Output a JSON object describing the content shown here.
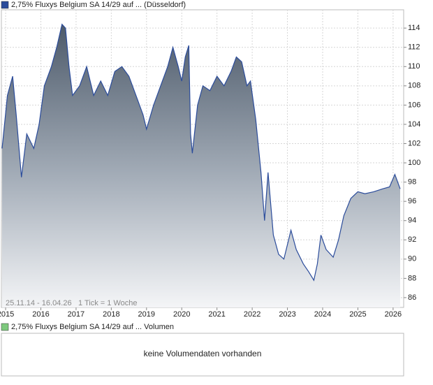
{
  "chart_data": {
    "type": "area",
    "x": [
      2014.9,
      2015.05,
      2015.2,
      2015.3,
      2015.45,
      2015.6,
      2015.8,
      2015.95,
      2016.1,
      2016.3,
      2016.45,
      2016.6,
      2016.7,
      2016.8,
      2016.9,
      2017.1,
      2017.3,
      2017.5,
      2017.7,
      2017.9,
      2018.1,
      2018.3,
      2018.5,
      2018.7,
      2018.9,
      2019.0,
      2019.2,
      2019.4,
      2019.6,
      2019.75,
      2019.9,
      2020.0,
      2020.1,
      2020.2,
      2020.25,
      2020.3,
      2020.45,
      2020.6,
      2020.8,
      2021.0,
      2021.2,
      2021.4,
      2021.55,
      2021.7,
      2021.85,
      2021.95,
      2022.1,
      2022.25,
      2022.35,
      2022.45,
      2022.6,
      2022.75,
      2022.9,
      2023.1,
      2023.25,
      2023.45,
      2023.6,
      2023.75,
      2023.85,
      2023.95,
      2024.1,
      2024.3,
      2024.45,
      2024.6,
      2024.8,
      2025.0,
      2025.2,
      2025.45,
      2025.7,
      2025.9,
      2026.05,
      2026.2
    ],
    "series": [
      {
        "name": "2,75% Fluxys Belgium SA 14/29 auf ... (Düsseldorf)",
        "color": "#2b4c9b",
        "values": [
          101.5,
          107,
          109,
          105,
          98.5,
          103,
          101.5,
          104,
          108,
          110,
          112,
          114.4,
          114,
          110,
          107,
          108,
          110,
          107,
          108.5,
          107,
          109.5,
          110,
          109,
          107,
          105,
          103.5,
          106,
          108,
          110,
          112,
          110,
          108.5,
          111,
          112.2,
          103,
          101,
          106,
          108,
          107.5,
          109,
          108,
          109.5,
          111,
          110.5,
          108,
          108.5,
          104.5,
          99,
          94,
          99,
          92.5,
          90.5,
          90,
          93,
          91,
          89.5,
          88.7,
          87.8,
          89.5,
          92.5,
          91,
          90.2,
          92,
          94.5,
          96.3,
          97,
          96.8,
          97,
          97.3,
          97.5,
          98.8,
          97.3
        ]
      }
    ],
    "xlim": [
      2014.88,
      2026.3
    ],
    "xticks": [
      2015,
      2016,
      2017,
      2018,
      2019,
      2020,
      2021,
      2022,
      2023,
      2024,
      2025,
      2026
    ],
    "ylim": [
      84.98,
      115.9
    ],
    "yticks": [
      86,
      88,
      90,
      92,
      94,
      96,
      98,
      100,
      102,
      104,
      106,
      108,
      110,
      112,
      114
    ],
    "grid": true,
    "annotations": [
      "25.11.14 - 16.04.26",
      "1 Tick = 1 Woche"
    ]
  },
  "volume_panel": {
    "legend": "2,75% Fluxys Belgium SA 14/29 auf ... Volumen",
    "message": "keine Volumendaten vorhanden"
  }
}
